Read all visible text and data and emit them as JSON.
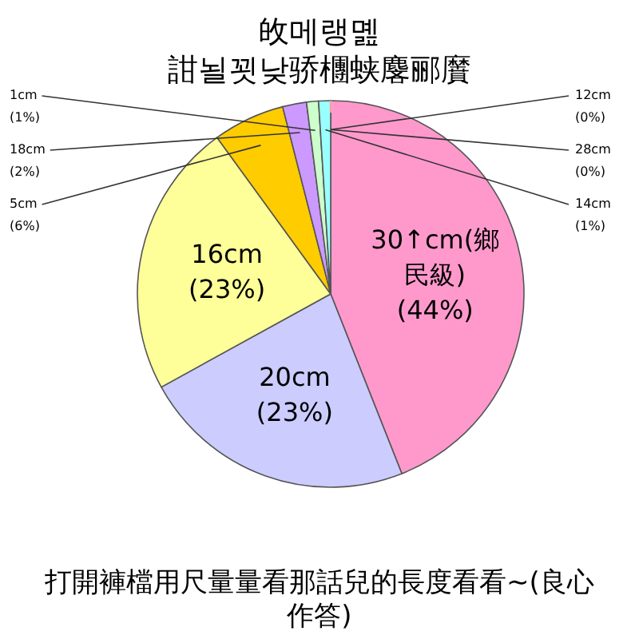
{
  "chart_data": {
    "type": "pie",
    "title": "敀메랭몚",
    "subtitle": "詌뇔꾓낮骄檲蛱麐郦黂",
    "categories": [
      "30↑cm(鄉民級)",
      "20cm",
      "16cm",
      "5cm",
      "18cm",
      "1cm",
      "14cm",
      "28cm",
      "12cm"
    ],
    "values": [
      44,
      23,
      23,
      6,
      2,
      1,
      1,
      0,
      0
    ],
    "value_labels": [
      "(44%)",
      "(23%)",
      "(23%)",
      "(6%)",
      "(2%)",
      "(1%)",
      "(1%)",
      "(0%)",
      "(0%)"
    ],
    "colors": [
      "#ff99cc",
      "#ccccff",
      "#ffff99",
      "#ffcc00",
      "#cc99ff",
      "#ccffcc",
      "#99ffff",
      "#ccffff",
      "#ff9999"
    ],
    "annotations": [
      "打開褲檔用尺量量看那話兒的長度看看~(良心作答)"
    ]
  }
}
